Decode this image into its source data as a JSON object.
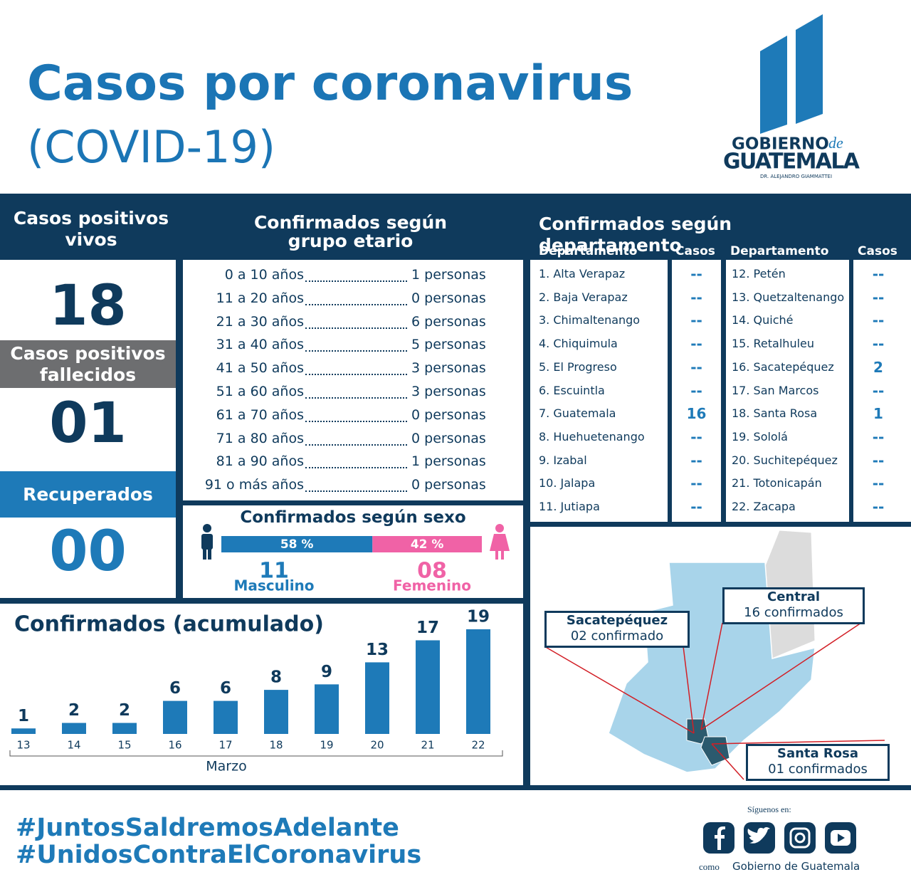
{
  "header": {
    "title": "Casos por coronavirus",
    "subtitle": "(COVID-19)"
  },
  "logo": {
    "line1": "GOBIERNO",
    "line1_suffix": "de",
    "line2": "GUATEMALA",
    "line3": "DR. ALEJANDRO GIAMMATTEI"
  },
  "summary": {
    "alive_title": "Casos positivos vivos",
    "alive": "18",
    "deceased_title": "Casos positivos fallecidos",
    "deceased": "01",
    "recovered_title": "Recuperados",
    "recovered": "00"
  },
  "age": {
    "title": "Confirmados según grupo etario",
    "rows": [
      [
        "0 a 10 años",
        "1 personas"
      ],
      [
        "11 a 20 años",
        "0 personas"
      ],
      [
        "21 a 30 años",
        "6 personas"
      ],
      [
        "31 a 40 años",
        "5 personas"
      ],
      [
        "41 a 50 años",
        "3 personas"
      ],
      [
        "51 a 60 años",
        "3 personas"
      ],
      [
        "61 a 70 años",
        "0 personas"
      ],
      [
        "71 a 80 años",
        "0 personas"
      ],
      [
        "81 a 90 años",
        "1 personas"
      ],
      [
        "91 o más años",
        "0 personas"
      ]
    ]
  },
  "sex": {
    "title": "Confirmados según sexo",
    "segments": [
      {
        "name": "Masculino",
        "count": "11",
        "percent": 58,
        "percent_label": "58 %",
        "color": "#1e7ab8"
      },
      {
        "name": "Femenino",
        "count": "08",
        "percent": 42,
        "percent_label": "42 %",
        "color": "#f062a6"
      }
    ]
  },
  "departments": {
    "title": "Confirmados según departamento",
    "col_name": "Departamento",
    "col_cases": "Casos",
    "rows": [
      [
        "1. Alta Verapaz",
        "--"
      ],
      [
        "2. Baja Verapaz",
        "--"
      ],
      [
        "3. Chimaltenango",
        "--"
      ],
      [
        "4. Chiquimula",
        "--"
      ],
      [
        "5. El Progreso",
        "--"
      ],
      [
        "6. Escuintla",
        "--"
      ],
      [
        "7.  Guatemala",
        "16"
      ],
      [
        "8. Huehuetenango",
        "--"
      ],
      [
        "9. Izabal",
        "--"
      ],
      [
        "10. Jalapa",
        "--"
      ],
      [
        "11. Jutiapa",
        "--"
      ],
      [
        "12. Petén",
        "--"
      ],
      [
        "13. Quetzaltenango",
        "--"
      ],
      [
        "14. Quiché",
        "--"
      ],
      [
        "15. Retalhuleu",
        "--"
      ],
      [
        "16. Sacatepéquez",
        "2"
      ],
      [
        "17. San Marcos",
        "--"
      ],
      [
        "18. Santa Rosa",
        "1"
      ],
      [
        "19. Sololá",
        "--"
      ],
      [
        "20. Suchitepéquez",
        "--"
      ],
      [
        "21. Totonicapán",
        "--"
      ],
      [
        "22. Zacapa",
        "--"
      ]
    ]
  },
  "map": {
    "callouts": [
      {
        "name": "Sacatepéquez",
        "text": "02 confirmado"
      },
      {
        "name": "Central",
        "text": "16 confirmados"
      },
      {
        "name": "Santa Rosa",
        "text": "01 confirmados"
      }
    ]
  },
  "chart_data": {
    "type": "bar",
    "title": "Confirmados (acumulado)",
    "categories": [
      "13",
      "14",
      "15",
      "16",
      "17",
      "18",
      "19",
      "20",
      "21",
      "22"
    ],
    "values": [
      1,
      2,
      2,
      6,
      6,
      8,
      9,
      13,
      17,
      19
    ],
    "x_label": "Marzo",
    "color": "#1e7ab8"
  },
  "footer": {
    "hashtags": [
      "#JuntosSaldremosAdelante",
      "#UnidosContraElCoronavirus"
    ],
    "follow": "Síguenos en:",
    "as": "como",
    "account": "Gobierno de Guatemala"
  }
}
